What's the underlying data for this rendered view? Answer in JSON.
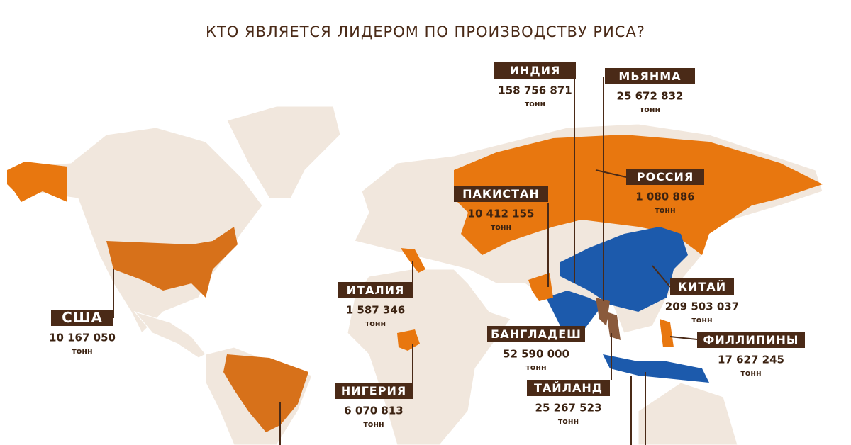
{
  "title": "КТО ЯВЛЯЕТСЯ ЛИДЕРОМ ПО ПРОИЗВОДСТВУ РИСА?",
  "callouts": [
    {
      "name": "ИНДИЯ",
      "value": "158 756 871",
      "unit": "тонн"
    },
    {
      "name": "МЬЯНМА",
      "value": "25 672 832",
      "unit": "тонн"
    },
    {
      "name": "РОССИЯ",
      "value": "1 080 886",
      "unit": "тонн"
    },
    {
      "name": "ПАКИСТАН",
      "value": "10 412 155",
      "unit": "тонн"
    },
    {
      "name": "ИТАЛИЯ",
      "value": "1 587 346",
      "unit": "тонн"
    },
    {
      "name": "КИТАЙ",
      "value": "209 503 037",
      "unit": "тонн"
    },
    {
      "name": "США",
      "value": "10 167 050",
      "unit": "тонн"
    },
    {
      "name": "БАНГЛАДЕШ",
      "value": "52 590 000",
      "unit": "тонн"
    },
    {
      "name": "ФИЛЛИПИНЫ",
      "value": "17 627 245",
      "unit": "тонн"
    },
    {
      "name": "ТАЙЛАНД",
      "value": "25 267 523",
      "unit": "тонн"
    },
    {
      "name": "НИГЕРИЯ",
      "value": "6 070 813",
      "unit": "тонн"
    }
  ]
}
